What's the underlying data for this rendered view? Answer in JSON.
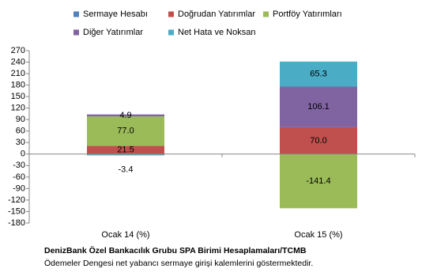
{
  "chart_data": {
    "type": "stacked-bar",
    "categories": [
      "Ocak 14 (%)",
      "Ocak 15 (%)"
    ],
    "series": [
      {
        "name": "Sermaye Hesabı",
        "color": "#4f81bd",
        "values": [
          null,
          null
        ]
      },
      {
        "name": "Doğrudan Yatırımlar",
        "color": "#c0504d",
        "values": [
          21.5,
          70
        ],
        "value_labels": [
          "21.5",
          "70.0"
        ]
      },
      {
        "name": "Portföy Yatırımları",
        "color": "#9bbb59",
        "values": [
          77,
          -141.4
        ],
        "value_labels": [
          "77.0",
          "-141.4"
        ]
      },
      {
        "name": "Diğer Yatırımlar",
        "color": "#8064a2",
        "values": [
          4.9,
          106.1
        ],
        "value_labels": [
          "4.9",
          "106.1"
        ]
      },
      {
        "name": "Net Hata ve Noksan",
        "color": "#4bacc6",
        "values": [
          -3.4,
          65.3
        ],
        "value_labels": [
          "-3.4",
          "65.3"
        ]
      }
    ],
    "ylim": [
      -180,
      270
    ],
    "yticks": [
      -180,
      -150,
      -120,
      -90,
      -60,
      -30,
      0,
      30,
      60,
      90,
      120,
      150,
      180,
      210,
      240,
      270
    ],
    "source": "DenizBank Özel Bankacılık Grubu SPA Birimi Hesaplamaları/TCMB",
    "note": "Ödemeler Dengesi net yabancı sermaye girişi kalemlerini göstermektedir."
  }
}
